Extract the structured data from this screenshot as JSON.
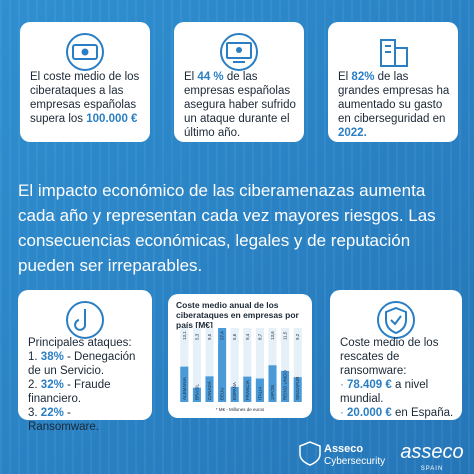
{
  "cards_top": [
    {
      "parts": [
        {
          "text": "El coste medio de los ciberataques a las empresas españolas supera los "
        },
        {
          "text": "100.000 €",
          "em": true
        }
      ]
    },
    {
      "parts": [
        {
          "text": "El "
        },
        {
          "text": "44 %",
          "em": true
        },
        {
          "text": " de las empresas españolas asegura haber sufrido un ataque durante el último año."
        }
      ]
    },
    {
      "parts": [
        {
          "text": "El "
        },
        {
          "text": "82%",
          "em": true
        },
        {
          "text": " de las grandes empresas ha aumentado su gasto en ciberseguridad en "
        },
        {
          "text": "2022.",
          "em": true
        }
      ]
    }
  ],
  "headline": "El impacto económico de las ciberamenazas aumenta cada año y representan cada vez mayores riesgos. Las consecuencias económicas, legales y de reputación pueden ser irreparables.",
  "attacks": {
    "title": "Principales ataques:",
    "items": [
      {
        "prefix": "1. ",
        "pct": "38%",
        "text": " - Denegación de un Servicio."
      },
      {
        "prefix": "2. ",
        "pct": "32%",
        "text": " - Fraude financiero."
      },
      {
        "prefix": "3. ",
        "pct": "22%",
        "text": " - Ransomware."
      }
    ]
  },
  "chart_data": {
    "type": "bar",
    "title": "Coste medio anual de los ciberataques en empresas por país [M€]",
    "categories": [
      "ALEMANIA",
      "BRASIL",
      "CANADÁ",
      "EEUU",
      "ESPAÑA",
      "FRANCIA",
      "ITALIA",
      "JAPÓN",
      "REINO UNIDO",
      "SINGAPUR"
    ],
    "values": [
      13.1,
      5.3,
      9.5,
      27.4,
      5.6,
      9.4,
      8.7,
      13.6,
      11.5,
      9.2
    ],
    "value_labels": [
      "13,1",
      "5,3",
      "9,5",
      "27,4",
      "5,6",
      "9,4",
      "8,7",
      "13,6",
      "11,5",
      "9,2"
    ],
    "note": "* M€ - Millones de euros",
    "color": "#4a9ad8"
  },
  "ransom": {
    "title": "Coste medio de los rescates de ransomware:",
    "items": [
      {
        "prefix": "· ",
        "amount": "78.409 €",
        "text": " a nivel mundial."
      },
      {
        "prefix": "· ",
        "amount": "20.000 €",
        "text": " en España."
      }
    ]
  },
  "footer": {
    "brand1": "Asseco",
    "brand2": "Cybersecurity",
    "logo": "asseco",
    "logo_sub": "SPAIN"
  }
}
